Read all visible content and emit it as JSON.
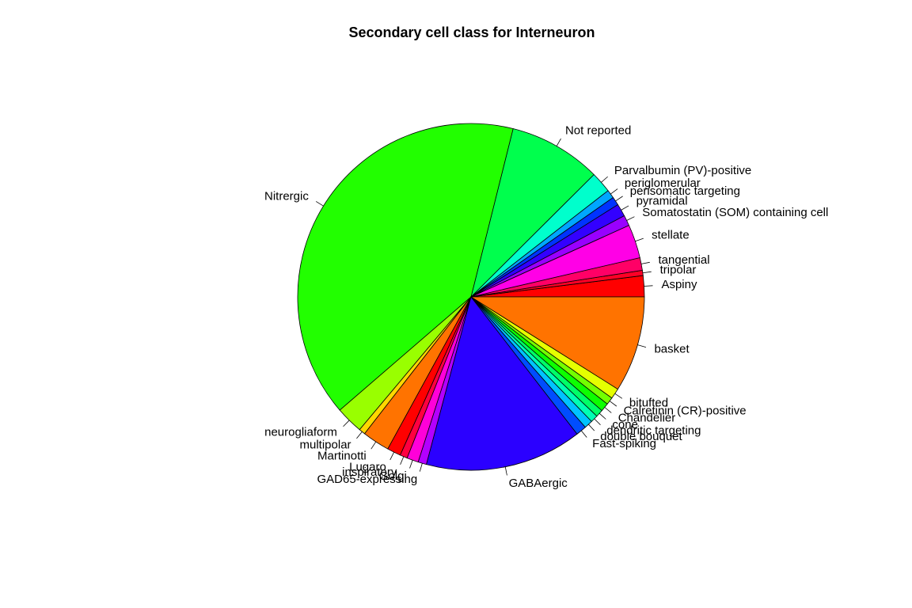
{
  "chart_data": {
    "type": "pie",
    "title": "Secondary cell class for Interneuron",
    "start_angle_deg": 0,
    "direction": "counterclockwise",
    "slices": [
      {
        "label": "Aspiny",
        "value": 2.0,
        "color": "#FF0000"
      },
      {
        "label": "tripolar",
        "value": 0.5,
        "color": "#FF0026"
      },
      {
        "label": "tangential",
        "value": 1.2,
        "color": "#FF0066"
      },
      {
        "label": "stellate",
        "value": 3.2,
        "color": "#FF00E6"
      },
      {
        "label": "Somatostatin (SOM) containing cell",
        "value": 1.0,
        "color": "#9900FF"
      },
      {
        "label": "pyramidal",
        "value": 1.2,
        "color": "#3300FF"
      },
      {
        "label": "perisomatic targeting",
        "value": 0.8,
        "color": "#0033FF"
      },
      {
        "label": "periglomerular",
        "value": 0.8,
        "color": "#00A6FF"
      },
      {
        "label": "Parvalbumin (PV)-positive",
        "value": 2.0,
        "color": "#00FFCC"
      },
      {
        "label": "Not reported",
        "value": 8.8,
        "color": "#00FF4D"
      },
      {
        "label": "Nitrergic",
        "value": 41.0,
        "color": "#22FF00"
      },
      {
        "label": "neurogliaform",
        "value": 2.6,
        "color": "#99FF00"
      },
      {
        "label": "multipolar",
        "value": 0.6,
        "color": "#FFD700"
      },
      {
        "label": "Martinotti",
        "value": 2.6,
        "color": "#FF7300"
      },
      {
        "label": "Lugaro",
        "value": 1.3,
        "color": "#FF0000"
      },
      {
        "label": "inspiratory",
        "value": 0.7,
        "color": "#FF0040"
      },
      {
        "label": "Golgi",
        "value": 1.1,
        "color": "#FF00D9"
      },
      {
        "label": "GAD65-expressing",
        "value": 0.8,
        "color": "#B300FF"
      },
      {
        "label": "GABAergic",
        "value": 14.9,
        "color": "#2B00FF"
      },
      {
        "label": "Fast-spiking",
        "value": 1.0,
        "color": "#004DFF"
      },
      {
        "label": "double bouquet",
        "value": 0.8,
        "color": "#00C3FF"
      },
      {
        "label": "dendritic targeting",
        "value": 0.7,
        "color": "#00FFB3"
      },
      {
        "label": "cone",
        "value": 0.7,
        "color": "#00FF66"
      },
      {
        "label": "Chandelier",
        "value": 0.8,
        "color": "#0DFF00"
      },
      {
        "label": "Calretinin (CR)-positive",
        "value": 0.7,
        "color": "#73FF00"
      },
      {
        "label": "bitufted",
        "value": 1.0,
        "color": "#E6FF00"
      },
      {
        "label": "basket",
        "value": 9.1,
        "color": "#FF7300"
      }
    ]
  }
}
